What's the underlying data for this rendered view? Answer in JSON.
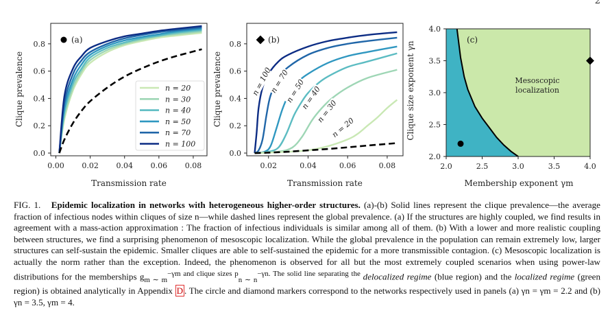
{
  "page_number": "2",
  "figure": {
    "panels": [
      {
        "id": "a",
        "label": "(a)",
        "marker": "circle",
        "xlabel": "Transmission rate",
        "ylabel": "Clique prevalence",
        "xticks": [
          "0.00",
          "0.02",
          "0.04",
          "0.06",
          "0.08"
        ],
        "yticks": [
          "0.0",
          "0.2",
          "0.4",
          "0.6",
          "0.8"
        ],
        "legend": [
          {
            "label": "n = 20",
            "color": "#c9e8b4"
          },
          {
            "label": "n = 30",
            "color": "#9ed6b5"
          },
          {
            "label": "n = 40",
            "color": "#5cbcc2"
          },
          {
            "label": "n = 50",
            "color": "#2f97c0"
          },
          {
            "label": "n = 70",
            "color": "#2066a8"
          },
          {
            "label": "n = 100",
            "color": "#0c2c84"
          }
        ]
      },
      {
        "id": "b",
        "label": "(b)",
        "marker": "diamond",
        "xlabel": "Transmission rate",
        "ylabel": "Clique prevalence",
        "xticks": [
          "0.02",
          "0.04",
          "0.06",
          "0.08"
        ],
        "yticks": [
          "0.0",
          "0.2",
          "0.4",
          "0.6",
          "0.8"
        ],
        "curve_labels": [
          "n = 100",
          "n = 70",
          "n = 50",
          "n = 40",
          "n = 30",
          "n = 20"
        ]
      },
      {
        "id": "c",
        "label": "(c)",
        "xlabel": "Membership exponent γm",
        "ylabel": "Clique size exponent γn",
        "xticks": [
          "2.0",
          "2.5",
          "3.0",
          "3.5",
          "4.0"
        ],
        "yticks": [
          "2.0",
          "2.5",
          "3.0",
          "3.5",
          "4.0"
        ],
        "region_label_line1": "Mesoscopic",
        "region_label_line2": "localization",
        "colors": {
          "delocalized": "#3fb3c4",
          "localized": "#cbe8aa"
        }
      }
    ]
  },
  "chart_data": [
    {
      "type": "line",
      "panel": "a",
      "xlabel": "Transmission rate",
      "ylabel": "Clique prevalence",
      "xlim": [
        -0.003,
        0.088
      ],
      "ylim": [
        -0.02,
        0.95
      ],
      "series": [
        {
          "name": "n = 20",
          "style": "solid",
          "x": [
            0.002,
            0.005,
            0.01,
            0.015,
            0.02,
            0.03,
            0.04,
            0.05,
            0.06,
            0.07,
            0.085
          ],
          "y": [
            0.0,
            0.25,
            0.46,
            0.58,
            0.66,
            0.74,
            0.79,
            0.82,
            0.845,
            0.86,
            0.88
          ]
        },
        {
          "name": "n = 30",
          "style": "solid",
          "x": [
            0.002,
            0.005,
            0.01,
            0.015,
            0.02,
            0.03,
            0.04,
            0.05,
            0.06,
            0.07,
            0.085
          ],
          "y": [
            0.0,
            0.27,
            0.48,
            0.6,
            0.68,
            0.755,
            0.8,
            0.83,
            0.855,
            0.87,
            0.89
          ]
        },
        {
          "name": "n = 40",
          "style": "solid",
          "x": [
            0.002,
            0.005,
            0.01,
            0.015,
            0.02,
            0.03,
            0.04,
            0.05,
            0.06,
            0.07,
            0.085
          ],
          "y": [
            0.0,
            0.3,
            0.51,
            0.62,
            0.7,
            0.77,
            0.81,
            0.84,
            0.86,
            0.88,
            0.9
          ]
        },
        {
          "name": "n = 50",
          "style": "solid",
          "x": [
            0.002,
            0.005,
            0.01,
            0.015,
            0.02,
            0.03,
            0.04,
            0.05,
            0.06,
            0.07,
            0.085
          ],
          "y": [
            0.0,
            0.33,
            0.54,
            0.65,
            0.72,
            0.785,
            0.825,
            0.85,
            0.87,
            0.89,
            0.91
          ]
        },
        {
          "name": "n = 70",
          "style": "solid",
          "x": [
            0.002,
            0.005,
            0.01,
            0.015,
            0.02,
            0.03,
            0.04,
            0.05,
            0.06,
            0.07,
            0.085
          ],
          "y": [
            0.0,
            0.37,
            0.58,
            0.68,
            0.74,
            0.8,
            0.84,
            0.865,
            0.885,
            0.9,
            0.92
          ]
        },
        {
          "name": "n = 100",
          "style": "solid",
          "x": [
            0.002,
            0.005,
            0.01,
            0.015,
            0.02,
            0.03,
            0.04,
            0.05,
            0.06,
            0.07,
            0.085
          ],
          "y": [
            0.0,
            0.42,
            0.62,
            0.71,
            0.77,
            0.82,
            0.855,
            0.875,
            0.895,
            0.91,
            0.93
          ]
        },
        {
          "name": "",
          "style": "dashed",
          "x": [
            0.002,
            0.005,
            0.01,
            0.015,
            0.02,
            0.03,
            0.04,
            0.05,
            0.06,
            0.07,
            0.085
          ],
          "y": [
            0.0,
            0.1,
            0.22,
            0.31,
            0.38,
            0.48,
            0.56,
            0.62,
            0.67,
            0.71,
            0.76
          ]
        }
      ]
    },
    {
      "type": "line",
      "panel": "b",
      "xlabel": "Transmission rate",
      "ylabel": "Clique prevalence",
      "xlim": [
        0.009,
        0.088
      ],
      "ylim": [
        -0.02,
        0.95
      ],
      "series": [
        {
          "name": "n = 100",
          "style": "solid",
          "x": [
            0.013,
            0.014,
            0.015,
            0.017,
            0.02,
            0.025,
            0.03,
            0.04,
            0.05,
            0.06,
            0.07,
            0.085
          ],
          "y": [
            0.0,
            0.15,
            0.33,
            0.48,
            0.58,
            0.67,
            0.72,
            0.78,
            0.82,
            0.845,
            0.865,
            0.885
          ]
        },
        {
          "name": "n = 70",
          "style": "solid",
          "x": [
            0.013,
            0.015,
            0.017,
            0.019,
            0.021,
            0.025,
            0.03,
            0.04,
            0.05,
            0.06,
            0.07,
            0.085
          ],
          "y": [
            0.0,
            0.02,
            0.1,
            0.28,
            0.42,
            0.55,
            0.63,
            0.72,
            0.77,
            0.8,
            0.82,
            0.845
          ]
        },
        {
          "name": "n = 50",
          "style": "solid",
          "x": [
            0.013,
            0.018,
            0.021,
            0.024,
            0.027,
            0.03,
            0.035,
            0.04,
            0.05,
            0.06,
            0.07,
            0.085
          ],
          "y": [
            0.0,
            0.01,
            0.05,
            0.18,
            0.32,
            0.42,
            0.52,
            0.58,
            0.66,
            0.71,
            0.74,
            0.78
          ]
        },
        {
          "name": "n = 40",
          "style": "solid",
          "x": [
            0.013,
            0.02,
            0.025,
            0.029,
            0.033,
            0.037,
            0.04,
            0.045,
            0.05,
            0.06,
            0.07,
            0.085
          ],
          "y": [
            0.0,
            0.01,
            0.04,
            0.14,
            0.28,
            0.38,
            0.44,
            0.51,
            0.56,
            0.63,
            0.67,
            0.73
          ]
        },
        {
          "name": "n = 30",
          "style": "solid",
          "x": [
            0.013,
            0.025,
            0.032,
            0.037,
            0.042,
            0.047,
            0.052,
            0.06,
            0.07,
            0.085
          ],
          "y": [
            0.0,
            0.01,
            0.04,
            0.12,
            0.24,
            0.33,
            0.4,
            0.48,
            0.55,
            0.61
          ]
        },
        {
          "name": "n = 20",
          "style": "solid",
          "x": [
            0.013,
            0.03,
            0.04,
            0.05,
            0.06,
            0.065,
            0.07,
            0.075,
            0.08,
            0.085
          ],
          "y": [
            0.0,
            0.01,
            0.02,
            0.05,
            0.1,
            0.14,
            0.2,
            0.26,
            0.33,
            0.39
          ]
        },
        {
          "name": "",
          "style": "dashed",
          "x": [
            0.013,
            0.02,
            0.03,
            0.04,
            0.05,
            0.06,
            0.07,
            0.08,
            0.085
          ],
          "y": [
            0.0,
            0.003,
            0.01,
            0.02,
            0.03,
            0.042,
            0.055,
            0.067,
            0.073
          ]
        }
      ]
    },
    {
      "type": "area",
      "panel": "c",
      "xlabel": "Membership exponent γm",
      "ylabel": "Clique size exponent γn",
      "xlim": [
        2.0,
        4.0
      ],
      "ylim": [
        2.0,
        4.0
      ],
      "boundary": {
        "x": [
          2.15,
          2.2,
          2.25,
          2.3,
          2.4,
          2.5,
          2.6,
          2.7,
          2.8,
          2.9,
          3.0
        ],
        "y": [
          4.0,
          3.55,
          3.25,
          3.05,
          2.78,
          2.6,
          2.45,
          2.3,
          2.18,
          2.08,
          2.0
        ]
      },
      "regions": [
        {
          "name": "Delocalized regime",
          "color": "#3fb3c4"
        },
        {
          "name": "Mesoscopic localization",
          "color": "#cbe8aa"
        }
      ],
      "markers": [
        {
          "shape": "circle",
          "x": 2.2,
          "y": 2.2
        },
        {
          "shape": "diamond",
          "x": 4.0,
          "y": 3.5
        }
      ]
    }
  ],
  "caption": {
    "label": "FIG. 1.",
    "title": "Epidemic localization in networks with heterogeneous higher-order structures.",
    "p1": "(a)-(b) Solid lines represent the clique prevalence—the average fraction of infectious nodes within cliques of size n—while dashed lines represent the global prevalence. (a) If the structures are highly coupled, we find results in agreement with a mass-action approximation : The fraction of infectious individuals is similar among all of them. (b) With a lower and more realistic coupling between structures, we find a surprising phenomenon of mesoscopic localization. While the global prevalence in the population can remain extremely low, larger structures can self-sustain the epidemic. Smaller cliques are able to self-sustained the epidemic for a more transmissible contagion. (c) Mesoscopic localization is actually the norm rather than the exception. Indeed, the phenomenon is observed for all but the most extremely coupled scenarios when using power-law distributions for the memberships g",
    "p2": "m ∼ m",
    "p3": "−γm and clique sizes p",
    "p4": "n ∼ n",
    "p5": "−γn. The solid line separating the ",
    "delocalized": "delocalized regime",
    "p6": " (blue region) and the ",
    "localized": "localized regime",
    "p7": " (green region) is obtained analytically in Appendix ",
    "appendix_ref": "D",
    "p8": ". The circle and diamond markers correspond to the networks respectively used in panels (a) γn = γm = 2.2 and (b) γn = 3.5, γm = 4."
  }
}
